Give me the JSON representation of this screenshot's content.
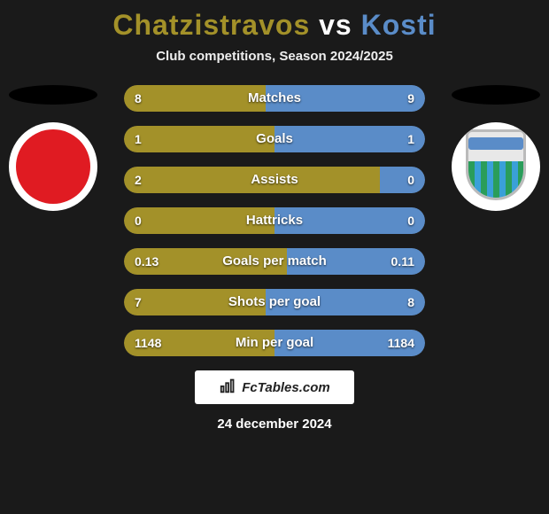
{
  "title": {
    "player1": "Chatzistravos",
    "vs": "vs",
    "player2": "Kosti",
    "player1_color": "#a39129",
    "player2_color": "#5a8cc8"
  },
  "subtitle": "Club competitions, Season 2024/2025",
  "badges": {
    "left": {
      "bg": "#ffffff",
      "inner": "#e01b22"
    },
    "right": {
      "bg": "#ffffff",
      "stripe_a": "#2a9d5a",
      "stripe_b": "#3aa0d8",
      "banner": "#5a8cc8"
    }
  },
  "stats": [
    {
      "label": "Matches",
      "left_val": "8",
      "right_val": "9",
      "left_pct": 47,
      "right_pct": 53
    },
    {
      "label": "Goals",
      "left_val": "1",
      "right_val": "1",
      "left_pct": 50,
      "right_pct": 50
    },
    {
      "label": "Assists",
      "left_val": "2",
      "right_val": "0",
      "left_pct": 85,
      "right_pct": 15
    },
    {
      "label": "Hattricks",
      "left_val": "0",
      "right_val": "0",
      "left_pct": 50,
      "right_pct": 50
    },
    {
      "label": "Goals per match",
      "left_val": "0.13",
      "right_val": "0.11",
      "left_pct": 54,
      "right_pct": 46
    },
    {
      "label": "Shots per goal",
      "left_val": "7",
      "right_val": "8",
      "left_pct": 47,
      "right_pct": 53
    },
    {
      "label": "Min per goal",
      "left_val": "1148",
      "right_val": "1184",
      "left_pct": 50,
      "right_pct": 50
    }
  ],
  "colors": {
    "left_bar": "#a39129",
    "right_bar": "#5a8cc8",
    "row_bg": "#3a3a3a",
    "page_bg": "#1a1a1a"
  },
  "brand": "FcTables.com",
  "date": "24 december 2024"
}
